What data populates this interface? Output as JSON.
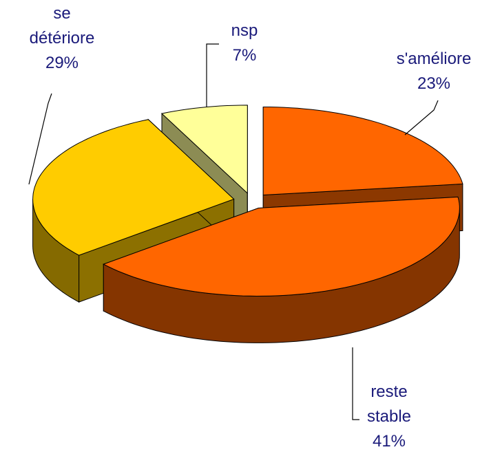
{
  "chart_data": {
    "type": "pie",
    "categories": [
      "s'améliore",
      "reste stable",
      "se détériore",
      "nsp"
    ],
    "values": [
      23,
      41,
      29,
      7
    ],
    "value_labels": [
      "23%",
      "41%",
      "29%",
      "7%"
    ],
    "colors": [
      "#ff6600",
      "#ff6600",
      "#ffcc00",
      "#ffff99"
    ]
  }
}
